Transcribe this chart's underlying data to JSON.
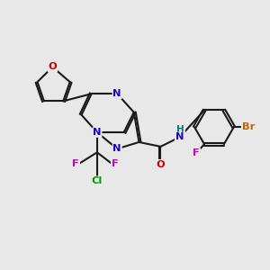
{
  "background_color": "#e8e8e8",
  "bond_color": "#1a1a1a",
  "bond_width": 1.5,
  "atom_colors": {
    "N": "#2200cc",
    "O": "#cc0000",
    "F": "#cc00cc",
    "Cl": "#009900",
    "Br": "#bb6600",
    "H": "#007777"
  },
  "figsize": [
    3.0,
    3.0
  ],
  "dpi": 100,
  "xlim": [
    0,
    12
  ],
  "ylim": [
    0,
    12
  ]
}
